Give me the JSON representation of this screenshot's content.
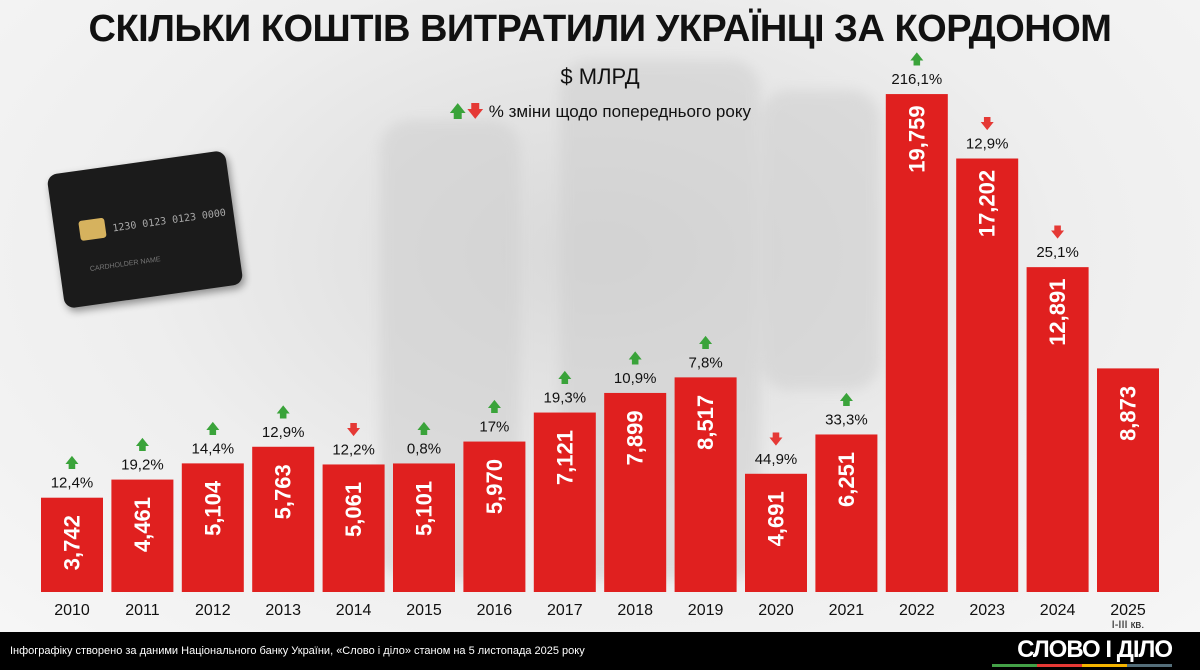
{
  "title": "СКІЛЬКИ КОШТІВ ВИТРАТИЛИ УКРАЇНЦІ ЗА КОРДОНОМ",
  "unit": "$ МЛРД",
  "legend": "% зміни щодо попереднього року",
  "card": {
    "number": "1230 0123 0123 0000",
    "name": "CARDHOLDER NAME"
  },
  "footer": {
    "source": "Інфографіку створено за даними Національного банку України, «Слово і діло» станом на 5 листопада 2025 року",
    "logo": "СЛОВО І ДІЛО"
  },
  "colors": {
    "bar": "#e0201f",
    "up": "#3aa33a",
    "down": "#e53935"
  },
  "chart_data": {
    "type": "bar",
    "unit": "$ МЛРД",
    "categories": [
      "2010",
      "2011",
      "2012",
      "2013",
      "2014",
      "2015",
      "2016",
      "2017",
      "2018",
      "2019",
      "2020",
      "2021",
      "2022",
      "2023",
      "2024",
      "2025"
    ],
    "category_sublabels": {
      "2025": "I-III кв."
    },
    "values": [
      3.742,
      4.461,
      5.104,
      5.763,
      5.061,
      5.101,
      5.97,
      7.121,
      7.899,
      8.517,
      4.691,
      6.251,
      19.759,
      17.202,
      12.891,
      8.873
    ],
    "value_labels": [
      "3,742",
      "4,461",
      "5,104",
      "5,763",
      "5,061",
      "5,101",
      "5,970",
      "7,121",
      "7,899",
      "8,517",
      "4,691",
      "6,251",
      "19,759",
      "17,202",
      "12,891",
      "8,873"
    ],
    "change_labels": [
      "12,4%",
      "19,2%",
      "14,4%",
      "12,9%",
      "12,2%",
      "0,8%",
      "17%",
      "19,3%",
      "10,9%",
      "7,8%",
      "44,9%",
      "33,3%",
      "216,1%",
      "12,9%",
      "25,1%",
      ""
    ],
    "change_direction": [
      "up",
      "up",
      "up",
      "up",
      "down",
      "up",
      "up",
      "up",
      "up",
      "up",
      "down",
      "up",
      "up",
      "down",
      "down",
      ""
    ],
    "ylim": [
      0,
      20
    ],
    "grid": false
  }
}
